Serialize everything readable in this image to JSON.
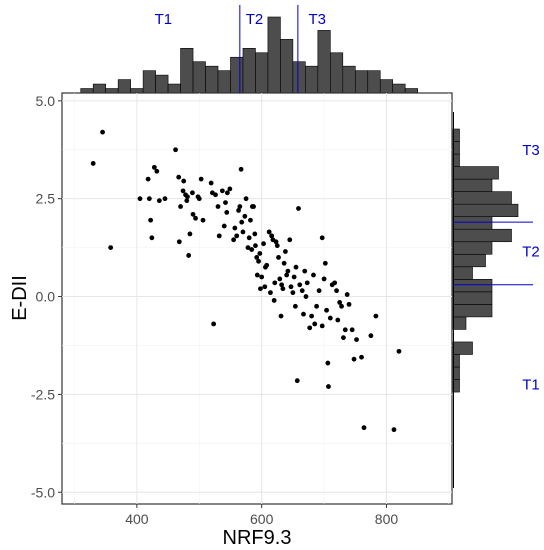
{
  "chart_data": {
    "type": "scatter",
    "title": "",
    "xlabel": "NRF9.3",
    "ylabel": "E-DII",
    "xlim": [
      280,
      905
    ],
    "ylim": [
      -5.3,
      5.2
    ],
    "x_ticks": [
      400,
      600,
      800
    ],
    "y_ticks": [
      5.0,
      2.5,
      0.0,
      -2.5,
      -5.0
    ],
    "x_tick_labels": [
      "400",
      "600",
      "800"
    ],
    "y_tick_labels": [
      "5.0",
      "2.5",
      "0.0",
      "-2.5",
      "-5.0"
    ],
    "grid": true,
    "colors": {
      "points": "#000000",
      "bars": "#4d4d4d",
      "tertile_lines": "#0000cc",
      "tertile_text": "#0000cc"
    },
    "points": [
      [
        345,
        4.2
      ],
      [
        330,
        3.4
      ],
      [
        358,
        1.25
      ],
      [
        405,
        2.5
      ],
      [
        418,
        3.0
      ],
      [
        420,
        2.5
      ],
      [
        422,
        1.95
      ],
      [
        424,
        1.5
      ],
      [
        428,
        3.3
      ],
      [
        432,
        3.2
      ],
      [
        436,
        2.45
      ],
      [
        445,
        2.5
      ],
      [
        462,
        3.75
      ],
      [
        467,
        3.05
      ],
      [
        468,
        1.4
      ],
      [
        470,
        2.3
      ],
      [
        474,
        2.7
      ],
      [
        475,
        2.95
      ],
      [
        478,
        2.6
      ],
      [
        480,
        2.45
      ],
      [
        481,
        2.55
      ],
      [
        483,
        1.05
      ],
      [
        485,
        1.6
      ],
      [
        489,
        2.65
      ],
      [
        490,
        2.1
      ],
      [
        494,
        2.0
      ],
      [
        498,
        2.55
      ],
      [
        500,
        2.5
      ],
      [
        503,
        3.0
      ],
      [
        506,
        1.95
      ],
      [
        519,
        2.9
      ],
      [
        521,
        2.65
      ],
      [
        526,
        2.6
      ],
      [
        530,
        2.3
      ],
      [
        532,
        1.55
      ],
      [
        537,
        2.7
      ],
      [
        540,
        1.8
      ],
      [
        542,
        2.4
      ],
      [
        544,
        2.15
      ],
      [
        545,
        2.65
      ],
      [
        549,
        2.75
      ],
      [
        555,
        1.45
      ],
      [
        557,
        1.75
      ],
      [
        560,
        1.55
      ],
      [
        563,
        2.2
      ],
      [
        565,
        2.3
      ],
      [
        567,
        3.25
      ],
      [
        568,
        1.9
      ],
      [
        570,
        1.65
      ],
      [
        573,
        2.05
      ],
      [
        575,
        2.5
      ],
      [
        578,
        1.25
      ],
      [
        580,
        1.5
      ],
      [
        582,
        1.95
      ],
      [
        584,
        1.2
      ],
      [
        585,
        2.3
      ],
      [
        587,
        2.3
      ],
      [
        589,
        1.6
      ],
      [
        590,
        1.3
      ],
      [
        592,
        1.0
      ],
      [
        593,
        0.55
      ],
      [
        595,
        0.9
      ],
      [
        597,
        1.1
      ],
      [
        598,
        0.2
      ],
      [
        600,
        0.5
      ],
      [
        603,
        1.35
      ],
      [
        605,
        0.25
      ],
      [
        606,
        0.75
      ],
      [
        608,
        0.8
      ],
      [
        612,
        1.65
      ],
      [
        614,
        0.1
      ],
      [
        616,
        1.55
      ],
      [
        618,
        1.45
      ],
      [
        620,
        -0.1
      ],
      [
        621,
        0.35
      ],
      [
        623,
        1.4
      ],
      [
        625,
        1.3
      ],
      [
        627,
        1.0
      ],
      [
        629,
        0.45
      ],
      [
        631,
        -0.5
      ],
      [
        632,
        0.3
      ],
      [
        634,
        0.2
      ],
      [
        636,
        0.85
      ],
      [
        638,
        1.15
      ],
      [
        640,
        0.55
      ],
      [
        642,
        0.65
      ],
      [
        645,
        1.45
      ],
      [
        647,
        0.25
      ],
      [
        650,
        0.1
      ],
      [
        652,
        0.5
      ],
      [
        654,
        -0.25
      ],
      [
        655,
        0.75
      ],
      [
        657,
        -2.15
      ],
      [
        659,
        2.25
      ],
      [
        661,
        0.3
      ],
      [
        665,
        0.15
      ],
      [
        667,
        -0.45
      ],
      [
        669,
        0.65
      ],
      [
        671,
        0.0
      ],
      [
        673,
        0.35
      ],
      [
        677,
        -0.8
      ],
      [
        680,
        -0.5
      ],
      [
        683,
        0.55
      ],
      [
        685,
        -0.7
      ],
      [
        688,
        -0.25
      ],
      [
        692,
        0.15
      ],
      [
        697,
        -0.75
      ],
      [
        700,
        0.45
      ],
      [
        702,
        0.85
      ],
      [
        704,
        -0.35
      ],
      [
        706,
        -1.7
      ],
      [
        707,
        -2.3
      ],
      [
        710,
        -0.55
      ],
      [
        713,
        0.3
      ],
      [
        717,
        0.35
      ],
      [
        720,
        0.15
      ],
      [
        722,
        -0.6
      ],
      [
        725,
        -0.15
      ],
      [
        728,
        -0.25
      ],
      [
        731,
        -1.05
      ],
      [
        734,
        -0.85
      ],
      [
        737,
        0.05
      ],
      [
        740,
        -0.2
      ],
      [
        745,
        -0.85
      ],
      [
        748,
        -1.6
      ],
      [
        752,
        -1.1
      ],
      [
        760,
        -1.55
      ],
      [
        764,
        -3.35
      ],
      [
        775,
        -1.0
      ],
      [
        783,
        -0.5
      ],
      [
        812,
        -3.4
      ],
      [
        820,
        -1.4
      ],
      [
        523,
        -0.7
      ],
      [
        697,
        1.5
      ]
    ],
    "x_marginal": {
      "type": "histogram",
      "bin_edges": [
        290,
        310,
        330,
        350,
        370,
        390,
        410,
        430,
        450,
        470,
        490,
        510,
        530,
        550,
        570,
        590,
        610,
        630,
        650,
        670,
        690,
        710,
        730,
        750,
        770,
        790,
        810,
        830,
        850
      ],
      "counts": [
        0,
        1,
        2,
        1,
        3,
        1,
        5,
        4,
        2,
        10,
        7,
        6,
        5,
        8,
        10,
        9,
        17,
        12,
        7,
        6,
        14,
        9,
        6,
        5,
        5,
        3,
        2,
        1
      ],
      "tertile_cuts": [
        565,
        658
      ],
      "tertile_labels": [
        "T1",
        "T2",
        "T3"
      ]
    },
    "y_marginal": {
      "type": "histogram",
      "bin_edges": [
        -5.0,
        -4.68,
        -4.36,
        -4.04,
        -3.72,
        -3.4,
        -3.08,
        -2.76,
        -2.44,
        -2.12,
        -1.8,
        -1.48,
        -1.16,
        -0.84,
        -0.52,
        -0.2,
        0.12,
        0.44,
        0.76,
        1.08,
        1.4,
        1.72,
        2.04,
        2.36,
        2.68,
        3.0,
        3.32,
        3.64,
        3.96,
        4.28,
        4.6,
        4.92
      ],
      "counts": [
        0,
        0,
        0,
        0,
        0,
        0,
        0,
        0,
        1,
        1,
        1,
        3,
        0,
        2,
        6,
        6,
        6,
        3,
        5,
        6,
        9,
        6,
        10,
        9,
        6,
        7,
        1,
        1,
        1,
        0,
        0
      ],
      "tertile_cuts": [
        0.3,
        1.9
      ],
      "tertile_labels": [
        "T1",
        "T2",
        "T3"
      ]
    }
  }
}
